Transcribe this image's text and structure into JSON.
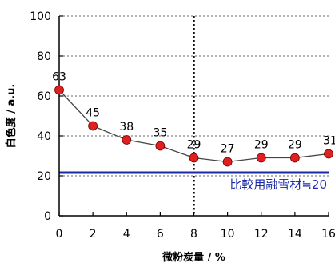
{
  "chart_data": {
    "type": "line",
    "title": "",
    "xlabel": "微粉炭量 / %",
    "ylabel": "白色度 / a.u.",
    "x": [
      0,
      2,
      4,
      6,
      8,
      10,
      12,
      14,
      16
    ],
    "xticks": [
      "0",
      "2",
      "4",
      "6",
      "8",
      "10",
      "12",
      "14",
      "16"
    ],
    "xlim": [
      0,
      16
    ],
    "ylim": [
      0,
      100
    ],
    "yticks": [
      "0",
      "20",
      "40",
      "60",
      "80",
      "100"
    ],
    "grid": "horizontal-dotted",
    "series": [
      {
        "values": [
          63,
          45,
          38,
          35,
          29,
          27,
          29,
          29,
          31
        ],
        "labels": [
          "63",
          "45",
          "38",
          "35",
          "29",
          "27",
          "29",
          "29",
          "31"
        ],
        "marker_color": "#e02020",
        "line_color": "#444444"
      }
    ],
    "reference_line": {
      "value": 20,
      "label": "比較用融雪材≒20",
      "color": "#1a2aa8"
    },
    "vertical_marker": {
      "x": 8
    }
  }
}
